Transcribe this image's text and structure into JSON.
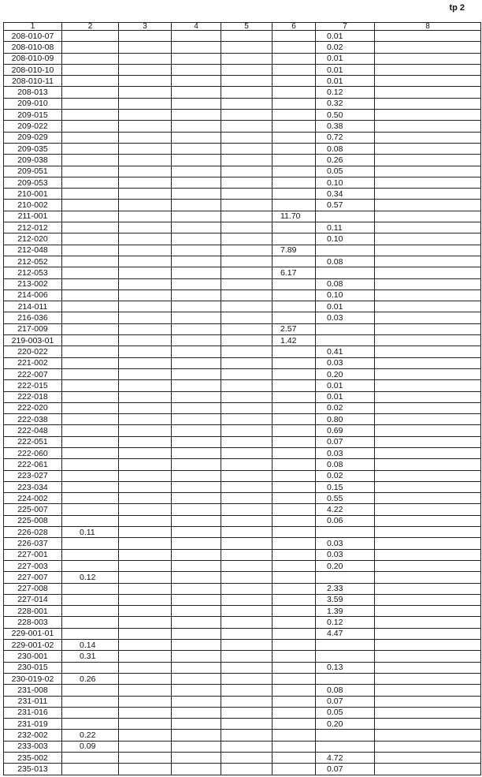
{
  "page_label": "tp 2",
  "columns": [
    "1",
    "2",
    "3",
    "4",
    "5",
    "6",
    "7",
    "8"
  ],
  "rows": [
    {
      "id": "208-010-07",
      "c7": "0.01"
    },
    {
      "id": "208-010-08",
      "c7": "0.02"
    },
    {
      "id": "208-010-09",
      "c7": "0.01"
    },
    {
      "id": "208-010-10",
      "c7": "0.01"
    },
    {
      "id": "208-010-11",
      "c7": "0.01"
    },
    {
      "id": "208-013",
      "c7": "0.12"
    },
    {
      "id": "209-010",
      "c7": "0.32"
    },
    {
      "id": "209-015",
      "c7": "0.50"
    },
    {
      "id": "209-022",
      "c7": "0.38"
    },
    {
      "id": "209-029",
      "c7": "0.72"
    },
    {
      "id": "209-035",
      "c7": "0.08"
    },
    {
      "id": "209-038",
      "c7": "0.26"
    },
    {
      "id": "209-051",
      "c7": "0.05"
    },
    {
      "id": "209-053",
      "c7": "0.10"
    },
    {
      "id": "210-001",
      "c7": "0.34"
    },
    {
      "id": "210-002",
      "c7": "0.57"
    },
    {
      "id": "211-001",
      "c6": "11.70"
    },
    {
      "id": "212-012",
      "c7": "0.11"
    },
    {
      "id": "212-020",
      "c7": "0.10"
    },
    {
      "id": "212-048",
      "c6": "7.89"
    },
    {
      "id": "212-052",
      "c7": "0.08"
    },
    {
      "id": "212-053",
      "c6": "6.17"
    },
    {
      "id": "213-002",
      "c7": "0.08"
    },
    {
      "id": "214-006",
      "c7": "0.10"
    },
    {
      "id": "214-011",
      "c7": "0.01"
    },
    {
      "id": "216-036",
      "c7": "0.03"
    },
    {
      "id": "217-009",
      "c6": "2.57"
    },
    {
      "id": "219-003-01",
      "c6": "1.42"
    },
    {
      "id": "220-022",
      "c7": "0.41"
    },
    {
      "id": "221-002",
      "c7": "0.03"
    },
    {
      "id": "222-007",
      "c7": "0.20"
    },
    {
      "id": "222-015",
      "c7": "0.01"
    },
    {
      "id": "222-018",
      "c7": "0.01"
    },
    {
      "id": "222-020",
      "c7": "0.02"
    },
    {
      "id": "222-038",
      "c7": "0.80"
    },
    {
      "id": "222-048",
      "c7": "0.69"
    },
    {
      "id": "222-051",
      "c7": "0.07"
    },
    {
      "id": "222-060",
      "c7": "0.03"
    },
    {
      "id": "222-061",
      "c7": "0.08"
    },
    {
      "id": "223-027",
      "c7": "0.02"
    },
    {
      "id": "223-034",
      "c7": "0.15"
    },
    {
      "id": "224-002",
      "c7": "0.55"
    },
    {
      "id": "225-007",
      "c7": "4.22"
    },
    {
      "id": "225-008",
      "c7": "0.06"
    },
    {
      "id": "226-028",
      "c2": "0.11"
    },
    {
      "id": "226-037",
      "c7": "0.03"
    },
    {
      "id": "227-001",
      "c7": "0.03"
    },
    {
      "id": "227-003",
      "c7": "0.20"
    },
    {
      "id": "227-007",
      "c2": "0.12"
    },
    {
      "id": "227-008",
      "c7": "2.33"
    },
    {
      "id": "227-014",
      "c7": "3.59"
    },
    {
      "id": "228-001",
      "c7": "1.39"
    },
    {
      "id": "228-003",
      "c7": "0.12"
    },
    {
      "id": "229-001-01",
      "c7": "4.47"
    },
    {
      "id": "229-001-02",
      "c2": "0.14"
    },
    {
      "id": "230-001",
      "c2": "0.31"
    },
    {
      "id": "230-015",
      "c7": "0.13"
    },
    {
      "id": "230-019-02",
      "c2": "0.26"
    },
    {
      "id": "231-008",
      "c7": "0.08"
    },
    {
      "id": "231-011",
      "c7": "0.07"
    },
    {
      "id": "231-016",
      "c7": "0.05"
    },
    {
      "id": "231-019",
      "c7": "0.20"
    },
    {
      "id": "232-002",
      "c2": "0.22"
    },
    {
      "id": "233-003",
      "c2": "0.09"
    },
    {
      "id": "235-002",
      "c7": "4.72"
    },
    {
      "id": "235-013",
      "c7": "0.07"
    }
  ]
}
